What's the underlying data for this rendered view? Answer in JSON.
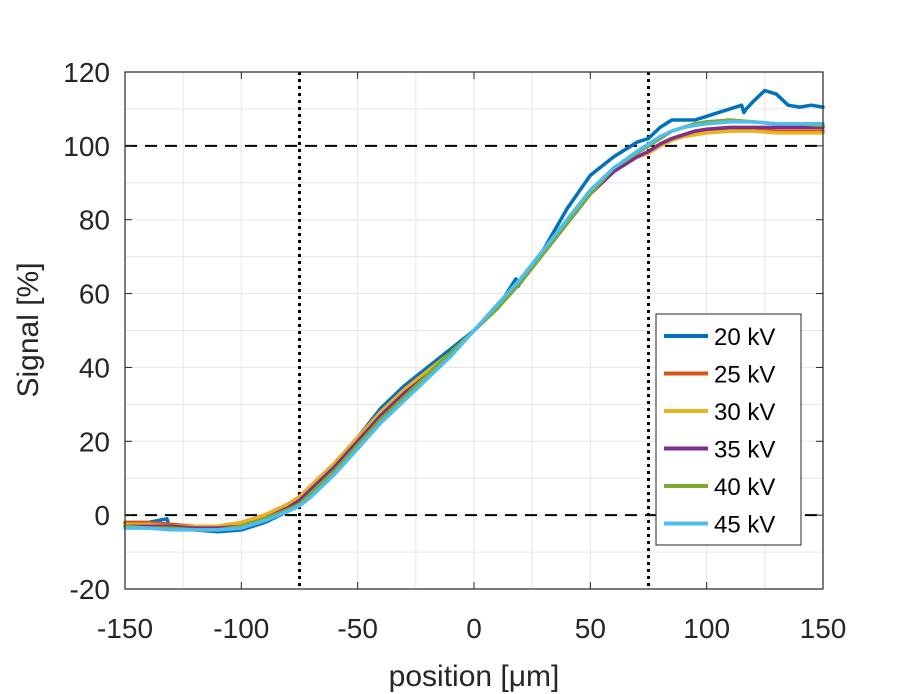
{
  "chart_data": {
    "type": "line",
    "title": "",
    "xlabel": "position [μm]",
    "ylabel": "Signal [%]",
    "xlim": [
      -150,
      150
    ],
    "ylim": [
      -20,
      120
    ],
    "xticks": [
      -150,
      -100,
      -50,
      0,
      50,
      100,
      150
    ],
    "yticks": [
      -20,
      0,
      20,
      40,
      60,
      80,
      100,
      120
    ],
    "xtick_labels": [
      "-150",
      "-100",
      "-50",
      "0",
      "50",
      "100",
      "150"
    ],
    "ytick_labels": [
      "-20",
      "0",
      "20",
      "40",
      "60",
      "80",
      "100",
      "120"
    ],
    "grid": true,
    "legend_position": "right",
    "reference_lines": {
      "horizontal_dashed": [
        0,
        100
      ],
      "vertical_dotted": [
        -75,
        75
      ]
    },
    "series": [
      {
        "name": "20 kV",
        "color": "#0072BD",
        "x": [
          -150,
          -140,
          -132,
          -131,
          -130,
          -120,
          -110,
          -100,
          -90,
          -80,
          -75,
          -70,
          -60,
          -50,
          -40,
          -30,
          -20,
          -10,
          0,
          10,
          18,
          19,
          20,
          30,
          40,
          50,
          60,
          70,
          75,
          80,
          85,
          90,
          95,
          100,
          105,
          110,
          115,
          116,
          117,
          120,
          125,
          130,
          135,
          140,
          145,
          150
        ],
        "y": [
          -2,
          -2,
          -1,
          -3,
          -3.5,
          -4,
          -4.5,
          -4,
          -2,
          1,
          3,
          8,
          14,
          21,
          29,
          35,
          40,
          45,
          50,
          56,
          64,
          62,
          63,
          72,
          83,
          92,
          97,
          101,
          102,
          105,
          107,
          107,
          107,
          108,
          109,
          110,
          111,
          109,
          110,
          112,
          115,
          114,
          111,
          110.5,
          111,
          110.5
        ]
      },
      {
        "name": "25 kV",
        "color": "#D95319",
        "x": [
          -150,
          -140,
          -130,
          -120,
          -110,
          -100,
          -90,
          -80,
          -75,
          -70,
          -60,
          -50,
          -40,
          -30,
          -20,
          -10,
          0,
          10,
          20,
          30,
          40,
          50,
          60,
          70,
          75,
          80,
          85,
          90,
          95,
          100,
          110,
          120,
          130,
          140,
          150
        ],
        "y": [
          -2,
          -2,
          -2.5,
          -3,
          -3,
          -2,
          0,
          3,
          5,
          8,
          14,
          21,
          28,
          34,
          39,
          44,
          50,
          56,
          63,
          71,
          79,
          87,
          93,
          97,
          98,
          100,
          102,
          103,
          103.5,
          104,
          104.5,
          104.5,
          104,
          104,
          104
        ]
      },
      {
        "name": "30 kV",
        "color": "#EDB120",
        "x": [
          -150,
          -140,
          -130,
          -120,
          -110,
          -100,
          -90,
          -80,
          -75,
          -70,
          -60,
          -50,
          -40,
          -30,
          -20,
          -10,
          0,
          10,
          20,
          30,
          40,
          50,
          60,
          70,
          75,
          80,
          85,
          90,
          95,
          100,
          110,
          120,
          130,
          140,
          150
        ],
        "y": [
          -2.5,
          -2.5,
          -3,
          -3,
          -3,
          -2,
          0,
          3,
          5,
          8,
          14,
          21,
          28,
          34,
          39,
          44,
          50,
          56,
          63,
          71,
          79,
          87,
          93,
          97,
          98,
          100,
          101.5,
          102.5,
          103,
          103.5,
          104,
          104,
          103.5,
          103.5,
          103.5
        ]
      },
      {
        "name": "35 kV",
        "color": "#7E2F8E",
        "x": [
          -150,
          -140,
          -130,
          -120,
          -110,
          -100,
          -90,
          -80,
          -75,
          -70,
          -60,
          -50,
          -40,
          -30,
          -20,
          -10,
          0,
          10,
          20,
          30,
          40,
          50,
          60,
          70,
          75,
          80,
          85,
          90,
          95,
          100,
          110,
          120,
          130,
          140,
          150
        ],
        "y": [
          -3,
          -3,
          -3,
          -3.5,
          -3.5,
          -3,
          -1,
          2,
          4,
          7,
          13,
          20,
          27,
          33,
          38,
          44,
          50,
          56,
          63,
          71,
          79,
          87,
          93,
          97,
          98.5,
          100.5,
          102,
          103,
          104,
          104.5,
          105,
          105,
          105,
          105,
          105
        ]
      },
      {
        "name": "40 kV",
        "color": "#77AC30",
        "x": [
          -150,
          -140,
          -130,
          -120,
          -110,
          -100,
          -90,
          -80,
          -75,
          -70,
          -60,
          -50,
          -40,
          -30,
          -20,
          -10,
          0,
          10,
          20,
          30,
          40,
          50,
          60,
          70,
          75,
          80,
          85,
          90,
          95,
          100,
          110,
          120,
          130,
          140,
          150
        ],
        "y": [
          -3,
          -3.5,
          -3.5,
          -4,
          -4,
          -3,
          -1,
          1.5,
          3,
          6,
          12,
          19,
          26,
          32,
          38,
          44,
          50,
          56,
          63,
          71,
          79,
          87,
          94,
          98,
          100,
          102,
          104,
          105,
          106,
          106.5,
          107,
          106.5,
          106,
          106,
          105.5
        ]
      },
      {
        "name": "45 kV",
        "color": "#4DBEEE",
        "x": [
          -150,
          -140,
          -130,
          -120,
          -110,
          -100,
          -90,
          -80,
          -75,
          -70,
          -60,
          -50,
          -40,
          -30,
          -20,
          -10,
          0,
          10,
          20,
          30,
          40,
          50,
          60,
          70,
          75,
          80,
          85,
          90,
          95,
          100,
          110,
          120,
          130,
          140,
          150
        ],
        "y": [
          -3.5,
          -3.5,
          -4,
          -4,
          -4,
          -3.5,
          -1.5,
          1,
          2.5,
          5,
          11,
          18,
          25,
          31,
          37,
          43,
          50,
          57,
          64,
          72,
          80,
          88,
          94,
          98.5,
          100.5,
          102.5,
          104,
          105,
          105.5,
          106,
          106.5,
          106.5,
          106,
          106,
          106
        ]
      }
    ]
  }
}
